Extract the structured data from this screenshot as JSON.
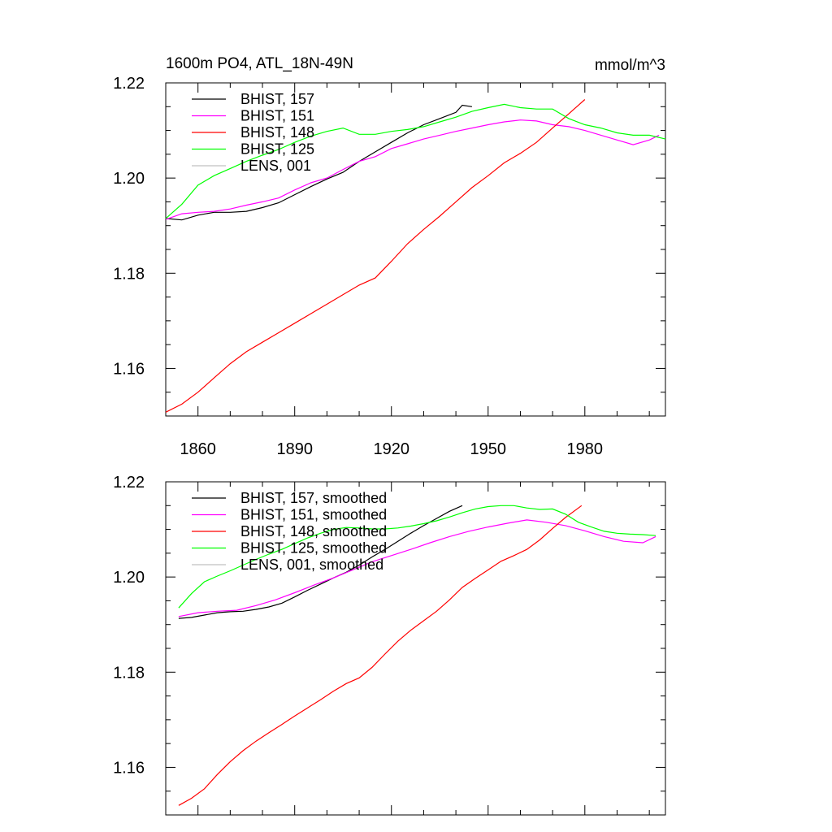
{
  "figure": {
    "title_left": "1600m PO4, ATL_18N-49N",
    "title_right": "mmol/m^3"
  },
  "chart_data": [
    {
      "type": "line",
      "title": "1600m PO4, ATL_18N-49N",
      "units": "mmol/m^3",
      "xlim": [
        1850,
        2005
      ],
      "ylim": [
        1.15,
        1.22
      ],
      "xticks": [
        1860,
        1890,
        1920,
        1950,
        1980
      ],
      "yticks": [
        1.16,
        1.18,
        1.2,
        1.22
      ],
      "ytick_labels": [
        "1.16",
        "1.18",
        "1.20",
        "1.22"
      ],
      "grid": false,
      "legend_position": "top-left",
      "series": [
        {
          "name": "BHIST, 157",
          "color": "#000000",
          "x": [
            1850,
            1855,
            1860,
            1865,
            1870,
            1875,
            1880,
            1885,
            1890,
            1895,
            1900,
            1905,
            1910,
            1915,
            1920,
            1925,
            1930,
            1935,
            1940,
            1942,
            1945
          ],
          "y": [
            1.1915,
            1.1912,
            1.1922,
            1.1928,
            1.1928,
            1.193,
            1.1938,
            1.1948,
            1.1965,
            1.1982,
            1.1998,
            1.2012,
            1.2035,
            1.2055,
            1.2075,
            1.2095,
            1.2112,
            1.2125,
            1.2138,
            1.2153,
            1.215
          ]
        },
        {
          "name": "BHIST, 151",
          "color": "#ff00ff",
          "x": [
            1850,
            1855,
            1860,
            1865,
            1870,
            1875,
            1880,
            1885,
            1890,
            1895,
            1900,
            1905,
            1910,
            1915,
            1920,
            1925,
            1930,
            1935,
            1940,
            1945,
            1950,
            1955,
            1960,
            1965,
            1970,
            1975,
            1980,
            1985,
            1990,
            1995,
            2000,
            2003
          ],
          "y": [
            1.1913,
            1.1925,
            1.1928,
            1.193,
            1.1935,
            1.1943,
            1.195,
            1.1958,
            1.1975,
            1.199,
            1.2,
            1.2018,
            1.2035,
            1.2045,
            1.2062,
            1.2072,
            1.2082,
            1.209,
            1.2098,
            1.2105,
            1.2112,
            1.2118,
            1.2122,
            1.212,
            1.2112,
            1.2108,
            1.21,
            1.209,
            1.208,
            1.207,
            1.208,
            1.209
          ]
        },
        {
          "name": "BHIST, 148",
          "color": "#ff0000",
          "x": [
            1850,
            1855,
            1860,
            1865,
            1870,
            1875,
            1880,
            1885,
            1890,
            1895,
            1900,
            1905,
            1910,
            1915,
            1920,
            1925,
            1930,
            1935,
            1940,
            1945,
            1950,
            1955,
            1960,
            1965,
            1970,
            1975,
            1980
          ],
          "y": [
            1.1508,
            1.1525,
            1.155,
            1.158,
            1.161,
            1.1635,
            1.1655,
            1.1675,
            1.1695,
            1.1715,
            1.1735,
            1.1755,
            1.1775,
            1.179,
            1.1825,
            1.1862,
            1.1892,
            1.192,
            1.195,
            1.198,
            1.2005,
            1.2032,
            1.2052,
            1.2075,
            1.2105,
            1.2135,
            1.2165
          ]
        },
        {
          "name": "BHIST, 125",
          "color": "#00ff00",
          "x": [
            1850,
            1855,
            1860,
            1865,
            1870,
            1875,
            1880,
            1885,
            1890,
            1895,
            1900,
            1905,
            1910,
            1915,
            1920,
            1925,
            1930,
            1935,
            1940,
            1945,
            1950,
            1955,
            1960,
            1965,
            1970,
            1975,
            1980,
            1985,
            1990,
            1995,
            2000,
            2005
          ],
          "y": [
            1.1915,
            1.1945,
            1.1985,
            1.2005,
            1.202,
            1.2035,
            1.2048,
            1.206,
            1.2075,
            1.2088,
            1.2098,
            1.2105,
            1.2092,
            1.2092,
            1.2098,
            1.2102,
            1.2108,
            1.2118,
            1.2128,
            1.214,
            1.2148,
            1.2155,
            1.2148,
            1.2145,
            1.2145,
            1.2125,
            1.2112,
            1.2105,
            1.2095,
            1.209,
            1.209,
            1.2082
          ]
        },
        {
          "name": "LENS, 001",
          "color": "#c0c0c0",
          "x": [],
          "y": []
        }
      ]
    },
    {
      "type": "line",
      "xlim": [
        1850,
        2005
      ],
      "ylim": [
        1.15,
        1.22
      ],
      "xticks": [
        1860,
        1890,
        1920,
        1950,
        1980
      ],
      "yticks": [
        1.16,
        1.18,
        1.2,
        1.22
      ],
      "ytick_labels": [
        "1.16",
        "1.18",
        "1.20",
        "1.22"
      ],
      "xticklabels_shown": false,
      "grid": false,
      "legend_position": "top-left",
      "series": [
        {
          "name": "BHIST, 157, smoothed",
          "color": "#000000",
          "x": [
            1854,
            1858,
            1862,
            1866,
            1870,
            1874,
            1878,
            1882,
            1886,
            1890,
            1894,
            1898,
            1902,
            1906,
            1910,
            1914,
            1918,
            1922,
            1926,
            1930,
            1934,
            1938,
            1942
          ],
          "y": [
            1.1913,
            1.1915,
            1.192,
            1.1925,
            1.1927,
            1.1928,
            1.1932,
            1.1937,
            1.1945,
            1.1958,
            1.1972,
            1.1985,
            1.1998,
            1.201,
            1.2025,
            1.2042,
            1.2058,
            1.2075,
            1.2092,
            1.2108,
            1.2123,
            1.2138,
            1.215
          ]
        },
        {
          "name": "BHIST, 151, smoothed",
          "color": "#ff00ff",
          "x": [
            1854,
            1860,
            1866,
            1872,
            1878,
            1884,
            1890,
            1896,
            1902,
            1908,
            1914,
            1920,
            1926,
            1932,
            1938,
            1944,
            1950,
            1956,
            1962,
            1968,
            1974,
            1980,
            1986,
            1992,
            1998,
            2002
          ],
          "y": [
            1.1917,
            1.1925,
            1.1928,
            1.193,
            1.194,
            1.1952,
            1.1967,
            1.1983,
            1.1998,
            1.2015,
            1.2032,
            1.2045,
            1.2058,
            1.2072,
            1.2085,
            1.2096,
            1.2105,
            1.2113,
            1.212,
            1.2115,
            1.2108,
            1.2097,
            1.2085,
            1.2075,
            1.2072,
            1.2085
          ]
        },
        {
          "name": "BHIST, 148, smoothed",
          "color": "#ff0000",
          "x": [
            1854,
            1858,
            1862,
            1866,
            1870,
            1874,
            1878,
            1882,
            1886,
            1890,
            1894,
            1898,
            1902,
            1906,
            1910,
            1914,
            1918,
            1922,
            1926,
            1930,
            1934,
            1938,
            1942,
            1946,
            1950,
            1954,
            1958,
            1962,
            1966,
            1970,
            1974,
            1979
          ],
          "y": [
            1.152,
            1.1535,
            1.1555,
            1.1585,
            1.1612,
            1.1635,
            1.1655,
            1.1673,
            1.169,
            1.1708,
            1.1725,
            1.1742,
            1.176,
            1.1776,
            1.1788,
            1.181,
            1.1838,
            1.1865,
            1.1888,
            1.1908,
            1.1928,
            1.1952,
            1.1978,
            1.1997,
            1.2015,
            1.2033,
            1.2045,
            1.2058,
            1.2078,
            1.2102,
            1.2125,
            1.215
          ]
        },
        {
          "name": "BHIST, 125, smoothed",
          "color": "#00ff00",
          "x": [
            1854,
            1858,
            1862,
            1866,
            1870,
            1874,
            1878,
            1882,
            1886,
            1890,
            1894,
            1898,
            1902,
            1906,
            1910,
            1914,
            1918,
            1922,
            1926,
            1930,
            1934,
            1938,
            1942,
            1946,
            1950,
            1954,
            1958,
            1962,
            1966,
            1970,
            1974,
            1978,
            1982,
            1986,
            1990,
            1994,
            1998,
            2002
          ],
          "y": [
            1.1935,
            1.1965,
            1.199,
            1.2002,
            1.2013,
            1.2025,
            1.2037,
            1.2048,
            1.2058,
            1.207,
            1.2082,
            1.2092,
            1.21,
            1.2104,
            1.2103,
            1.2101,
            1.2101,
            1.2103,
            1.2107,
            1.2112,
            1.2118,
            1.2126,
            1.2135,
            1.2143,
            1.2148,
            1.215,
            1.215,
            1.2145,
            1.2142,
            1.2143,
            1.2132,
            1.2115,
            1.2105,
            1.2096,
            1.2092,
            1.209,
            1.2089,
            1.2087
          ]
        },
        {
          "name": "LENS, 001, smoothed",
          "color": "#c0c0c0",
          "x": [],
          "y": []
        }
      ]
    }
  ]
}
